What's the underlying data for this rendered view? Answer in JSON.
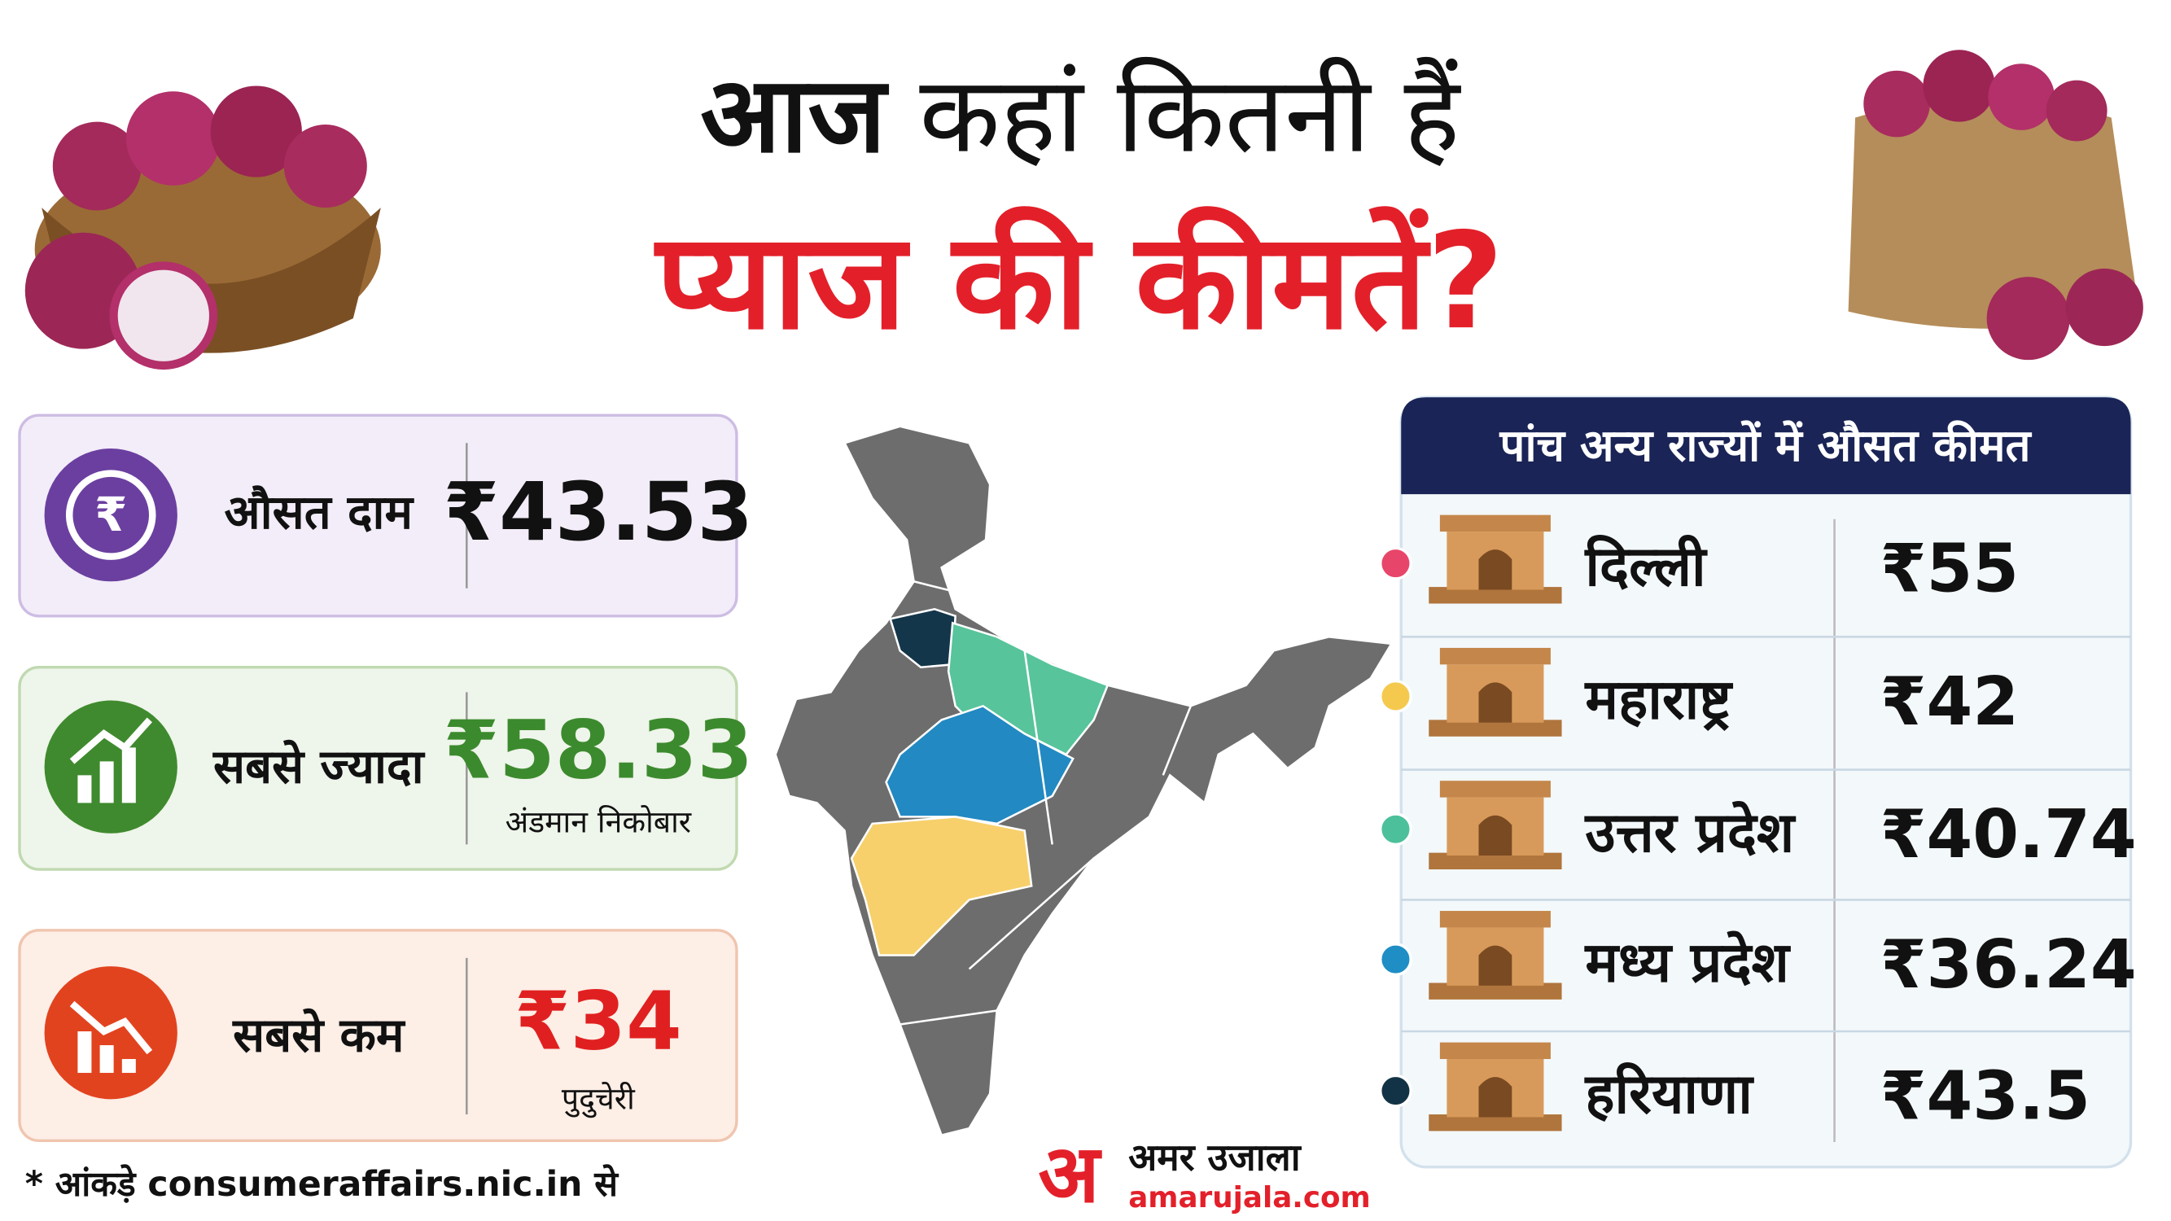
{
  "header": {
    "title_bold": "आज",
    "title_rest": "कहां कितनी हैं",
    "title_line2": "प्याज की कीमतें?"
  },
  "stats": [
    {
      "label": "औसत दाम",
      "price": "₹43.53"
    },
    {
      "label": "सबसे ज्यादा",
      "price": "₹58.33",
      "place": "अंडमान निकोबार"
    },
    {
      "label": "सबसे कम",
      "price": "₹34",
      "place": "पुदुचेरी"
    }
  ],
  "states_panel": {
    "title": "पांच अन्य राज्यों में औसत कीमत",
    "rows": [
      {
        "name": "दिल्ली",
        "price": "₹55"
      },
      {
        "name": "महाराष्ट्र",
        "price": "₹42"
      },
      {
        "name": "उत्तर प्रदेश",
        "price": "₹40.74"
      },
      {
        "name": "मध्य प्रदेश",
        "price": "₹36.24"
      },
      {
        "name": "हरियाणा",
        "price": "₹43.5"
      }
    ]
  },
  "footnote": "* आंकड़े consumeraffairs.nic.in से",
  "logo": {
    "mark": "अ",
    "name": "अमर उजाला",
    "site": "amarujala.com"
  }
}
